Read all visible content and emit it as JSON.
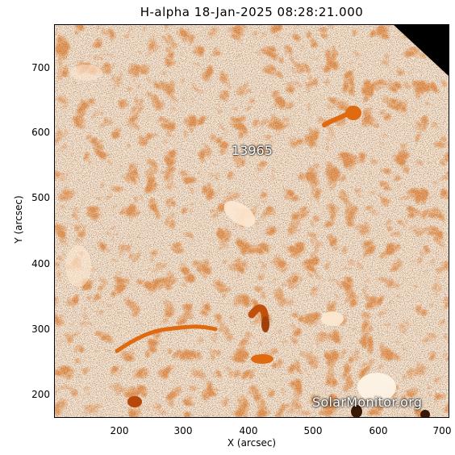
{
  "title": "H-alpha 18-Jan-2025 08:28:21.000",
  "x_axis": {
    "label": "X (arcsec)",
    "ticks": [
      "200",
      "300",
      "400",
      "500",
      "600",
      "700"
    ],
    "range": [
      105,
      710
    ]
  },
  "y_axis": {
    "label": "Y (arcsec)",
    "ticks": [
      "200",
      "300",
      "400",
      "500",
      "600",
      "700"
    ],
    "range": [
      165,
      765
    ]
  },
  "active_region_label": "13965",
  "watermark": "SolarMonitor.org",
  "colors": {
    "background": "#ffffff",
    "chromosphere": "#f0a060",
    "plage": "#fde8d2",
    "filament": "#e06a10",
    "dark_texture": "#3a2010"
  }
}
